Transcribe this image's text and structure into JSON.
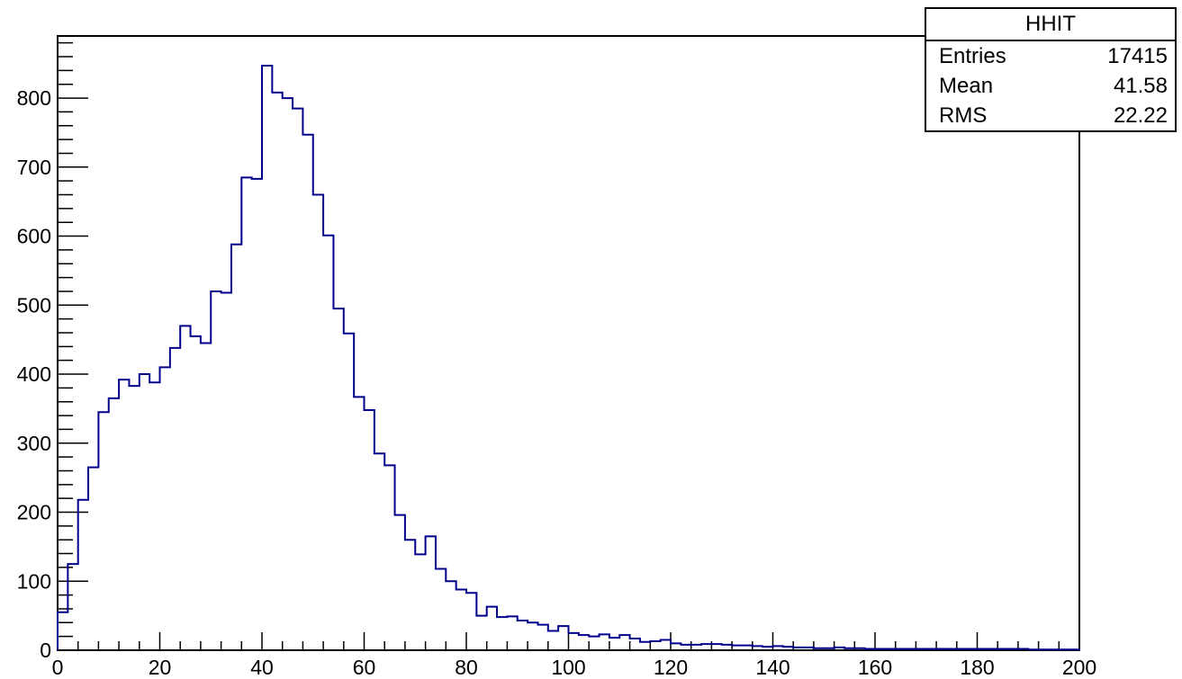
{
  "chart_data": {
    "type": "histogram",
    "title": "",
    "xlabel": "",
    "ylabel": "",
    "xlim": [
      0,
      200
    ],
    "ylim": [
      0,
      890
    ],
    "grid": false,
    "line_color": "#00008b",
    "bin_width": 2,
    "x_ticks": [
      0,
      20,
      40,
      60,
      80,
      100,
      120,
      140,
      160,
      180,
      200
    ],
    "y_ticks": [
      0,
      100,
      200,
      300,
      400,
      500,
      600,
      700,
      800
    ],
    "bin_edges_start": 0,
    "values": [
      55,
      125,
      218,
      265,
      345,
      365,
      392,
      383,
      400,
      388,
      410,
      438,
      470,
      455,
      445,
      520,
      518,
      588,
      685,
      683,
      847,
      808,
      800,
      785,
      747,
      660,
      601,
      495,
      459,
      367,
      348,
      285,
      268,
      196,
      160,
      139,
      165,
      118,
      100,
      88,
      83,
      50,
      63,
      48,
      49,
      43,
      40,
      37,
      28,
      35,
      25,
      22,
      20,
      23,
      18,
      22,
      17,
      12,
      13,
      15,
      10,
      8,
      8,
      9,
      9,
      8,
      7,
      7,
      6,
      5,
      6,
      5,
      4,
      4,
      3,
      3,
      4,
      3,
      3,
      2,
      2,
      2,
      2,
      2,
      2,
      2,
      2,
      2,
      2,
      2,
      2,
      2,
      2,
      2,
      2,
      1,
      1,
      1,
      1,
      1
    ]
  },
  "stats_box": {
    "title": "HHIT",
    "rows": [
      {
        "label": "Entries",
        "value": "17415"
      },
      {
        "label": "Mean",
        "value": "41.58"
      },
      {
        "label": "RMS",
        "value": "22.22"
      }
    ]
  }
}
